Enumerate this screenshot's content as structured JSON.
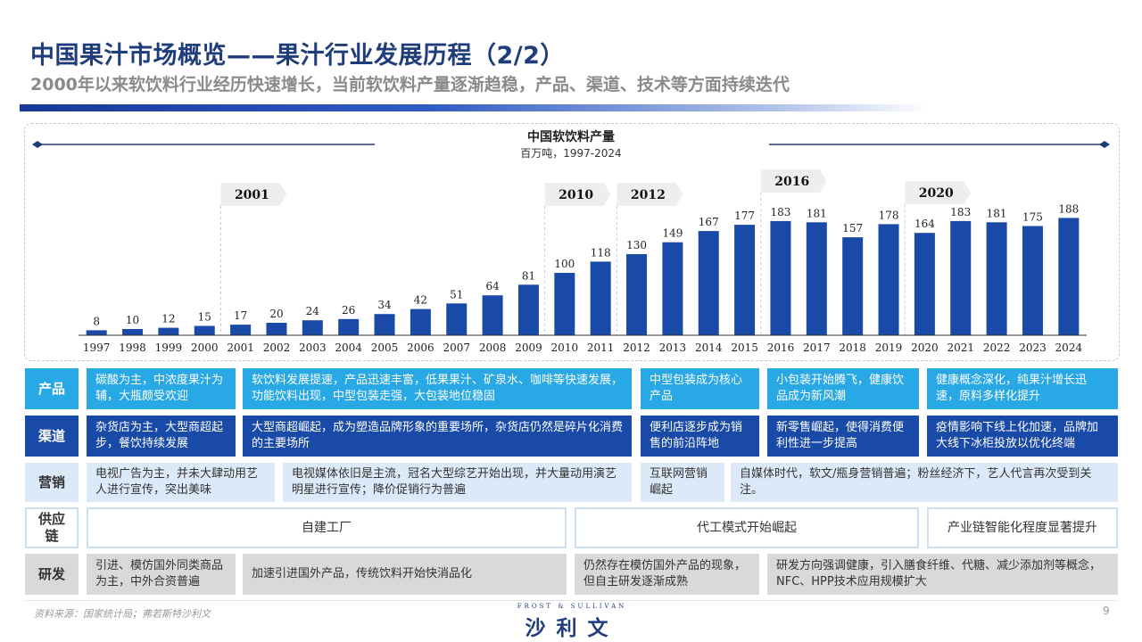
{
  "header": {
    "title": "中国果汁市场概览——果汁行业发展历程（2/2）",
    "subtitle": "2000年以来软饮料行业经历快速增长，当前软饮料产量逐渐趋稳，产品、渠道、技术等方面持续迭代"
  },
  "chart_data": {
    "type": "bar",
    "title": "中国软饮料产量",
    "subtitle": "百万吨，1997-2024",
    "categories": [
      "1997",
      "1998",
      "1999",
      "2000",
      "2001",
      "2002",
      "2003",
      "2004",
      "2005",
      "2006",
      "2007",
      "2008",
      "2009",
      "2010",
      "2011",
      "2012",
      "2013",
      "2014",
      "2015",
      "2016",
      "2017",
      "2018",
      "2019",
      "2020",
      "2021",
      "2022",
      "2023",
      "2024"
    ],
    "values": [
      8,
      10,
      12,
      15,
      17,
      20,
      24,
      26,
      34,
      42,
      51,
      64,
      81,
      100,
      118,
      130,
      149,
      167,
      177,
      183,
      181,
      157,
      178,
      164,
      183,
      181,
      175,
      188
    ],
    "phase_markers": [
      "2001",
      "2010",
      "2012",
      "2016",
      "2020"
    ],
    "ylim": [
      0,
      200
    ],
    "grid": false,
    "bar_color": "#1a4aa8"
  },
  "table": {
    "rows": [
      {
        "label": "产品",
        "cells": [
          "碳酸为主，中浓度果汁为辅，大瓶颇受欢迎",
          "软饮料发展提速，产品迅速丰富，低果果汁、矿泉水、咖啡等快速发展，功能饮料出现，中型包装走强，大包装地位稳固",
          "中型包装成为核心产品",
          "小包装开始腾飞，健康饮品成为新风潮",
          "健康概念深化，纯果汁增长迅速，原料多样化提升"
        ]
      },
      {
        "label": "渠道",
        "cells": [
          "杂货店为主，大型商超起步，餐饮持续发展",
          "大型商超崛起，成为塑造品牌形象的重要场所，杂货店仍然是碎片化消费的主要场所",
          "便利店逐步成为销售的前沿阵地",
          "新零售崛起，使得消费便利性进一步提高",
          "疫情影响下线上化加速，品牌加大线下冰柜投放以优化终端"
        ]
      },
      {
        "label": "营销",
        "cells": [
          "电视广告为主，并未大肆动用艺人进行宣传，突出美味",
          "电视媒体依旧是主流，冠名大型综艺开始出现，并大量动用演艺明星进行宣传；降价促销行为普遍",
          "互联网营销崛起",
          "自媒体时代，软文/瓶身营销普遍；粉丝经济下，艺人代言再次受到关注。"
        ]
      },
      {
        "label": "供应链",
        "cells": [
          "自建工厂",
          "代工模式开始崛起",
          "产业链智能化程度显著提升"
        ]
      },
      {
        "label": "研发",
        "cells": [
          "引进、模仿国外同类商品为主，中外合资普遍",
          "加速引进国外产品，传统饮料开始快消品化",
          "仍然存在模仿国外产品的现象，但自主研发逐渐成熟",
          "研发方向强调健康，引入膳食纤维、代糖、减少添加剂等概念，NFC、HPP技术应用规模扩大"
        ]
      }
    ]
  },
  "footer": {
    "source": "资料来源：国家统计局；弗若斯特沙利文",
    "logo_top": "FROST & SULLIVAN",
    "logo_main": "沙利文",
    "page": "9"
  }
}
